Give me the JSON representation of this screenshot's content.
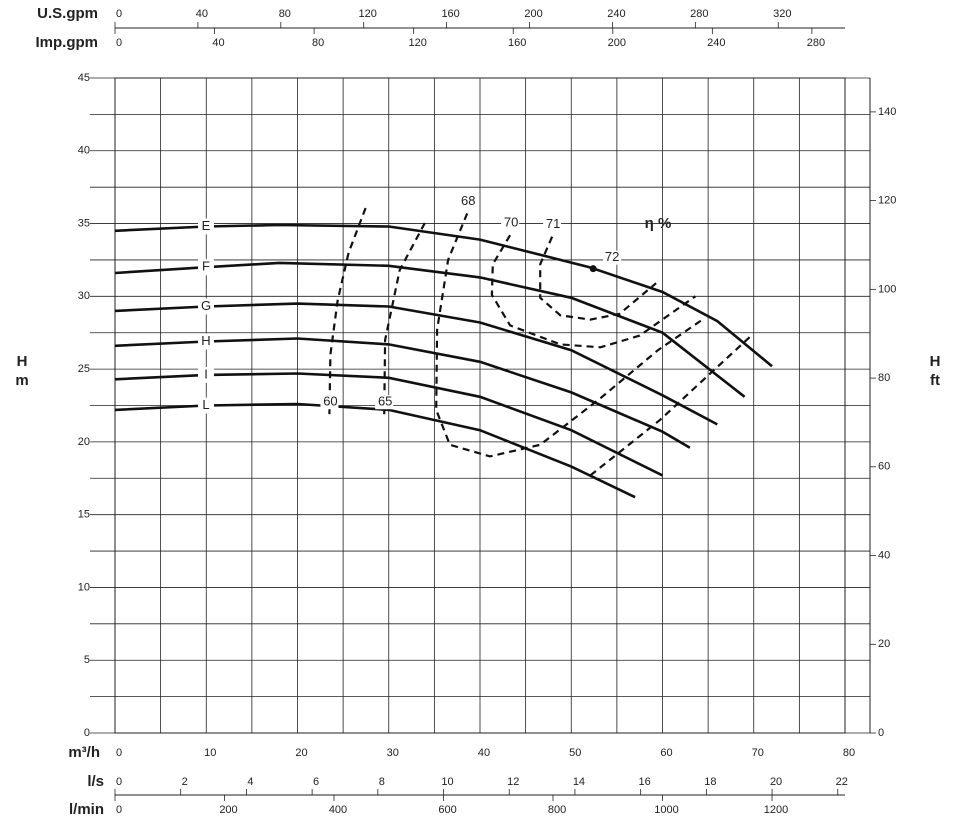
{
  "chart_data": {
    "type": "line",
    "ylabel": "H",
    "yunit": "m",
    "y2label": "H",
    "y2unit": "ft",
    "xlabel": "m³/h",
    "xlim": [
      0,
      80
    ],
    "xticks": [
      0,
      10,
      20,
      30,
      40,
      50,
      60,
      70,
      80
    ],
    "x_minor_ticks": [
      5,
      15,
      25,
      35,
      45,
      55,
      65,
      75
    ],
    "ylim": [
      0,
      45
    ],
    "yticks": [
      0,
      5,
      10,
      15,
      20,
      25,
      30,
      35,
      40,
      45
    ],
    "y_minor_ticks": [
      2.5,
      7.5,
      12.5,
      17.5,
      22.5,
      27.5,
      32.5,
      37.5,
      42.5
    ],
    "y2lim": [
      0,
      147.64
    ],
    "y2ticks": [
      0,
      20,
      40,
      60,
      80,
      100,
      120,
      140
    ],
    "grid": true,
    "extra_x_axes": [
      {
        "name": "U.S.gpm",
        "position": "top",
        "lim": [
          0,
          352.2
        ],
        "ticks": [
          0,
          40,
          80,
          120,
          160,
          200,
          240,
          280,
          320
        ]
      },
      {
        "name": "Imp.gpm",
        "position": "top",
        "lim": [
          0,
          293.3
        ],
        "ticks": [
          0,
          40,
          80,
          120,
          160,
          200,
          240,
          280
        ]
      },
      {
        "name": "l/s",
        "position": "bottom",
        "lim": [
          0,
          22.22
        ],
        "ticks": [
          0,
          2,
          4,
          6,
          8,
          10,
          12,
          14,
          16,
          18,
          20,
          22
        ]
      },
      {
        "name": "l/min",
        "position": "bottom",
        "lim": [
          0,
          1333.3
        ],
        "ticks": [
          0,
          200,
          400,
          600,
          800,
          1000,
          1200
        ]
      }
    ],
    "series": [
      {
        "name": "E",
        "x": [
          0,
          10,
          18,
          30,
          40,
          52,
          60,
          66,
          72
        ],
        "values": [
          34.5,
          34.8,
          34.9,
          34.8,
          33.9,
          32,
          30.3,
          28.3,
          25.2
        ]
      },
      {
        "name": "F",
        "x": [
          0,
          10,
          18,
          30,
          40,
          50,
          60,
          69
        ],
        "values": [
          31.6,
          32.0,
          32.3,
          32.1,
          31.3,
          29.9,
          27.5,
          23.1
        ]
      },
      {
        "name": "G",
        "x": [
          0,
          10,
          20,
          30,
          40,
          50,
          60,
          66
        ],
        "values": [
          29.0,
          29.3,
          29.5,
          29.3,
          28.2,
          26.3,
          23.2,
          21.2
        ]
      },
      {
        "name": "H",
        "x": [
          0,
          10,
          20,
          30,
          40,
          50,
          60,
          63
        ],
        "values": [
          26.6,
          26.9,
          27.1,
          26.7,
          25.5,
          23.4,
          20.7,
          19.6
        ]
      },
      {
        "name": "I",
        "x": [
          0,
          10,
          20,
          30,
          40,
          50,
          60
        ],
        "values": [
          24.3,
          24.6,
          24.7,
          24.4,
          23.1,
          20.8,
          17.7
        ]
      },
      {
        "name": "L",
        "x": [
          0,
          10,
          20,
          30,
          40,
          50,
          57
        ],
        "values": [
          22.2,
          22.5,
          22.6,
          22.2,
          20.8,
          18.3,
          16.2
        ]
      }
    ],
    "efficiency": {
      "label": "η %",
      "curves": [
        {
          "name": "60",
          "x": [
            23.5,
            23.6,
            24.4,
            25.6,
            27.6
          ],
          "values": [
            21.9,
            26,
            29.7,
            33,
            36.3
          ]
        },
        {
          "name": "65",
          "x": [
            29.5,
            29.6,
            31.2,
            34,
            null,
            52.1,
            59.7,
            69.9
          ],
          "values": [
            21.9,
            27,
            31.8,
            35.1,
            null,
            17.7,
            21.5,
            27.4
          ]
        },
        {
          "name": "68",
          "x": [
            38.6,
            36.5,
            35.3,
            35.2,
            36.7,
            41.1,
            46.6,
            53.2,
            59.5,
            64.6
          ],
          "values": [
            35.7,
            32.5,
            27.7,
            22.2,
            19.8,
            19.0,
            19.8,
            23.0,
            26.3,
            28.5
          ]
        },
        {
          "name": "70",
          "x": [
            43.3,
            41.4,
            41.3,
            43.3,
            48.8,
            53.2,
            57.5,
            63.6
          ],
          "values": [
            34.2,
            32.2,
            30.1,
            28.0,
            26.7,
            26.5,
            27.3,
            30.0
          ]
        },
        {
          "name": "71",
          "x": [
            47.9,
            46.6,
            46.6,
            48.8,
            52.1,
            55.3,
            59.3
          ],
          "values": [
            34.1,
            32.2,
            29.9,
            28.7,
            28.4,
            28.8,
            30.9
          ]
        },
        {
          "name": "72",
          "x": [
            52.4
          ],
          "values": [
            31.9
          ]
        }
      ]
    }
  }
}
